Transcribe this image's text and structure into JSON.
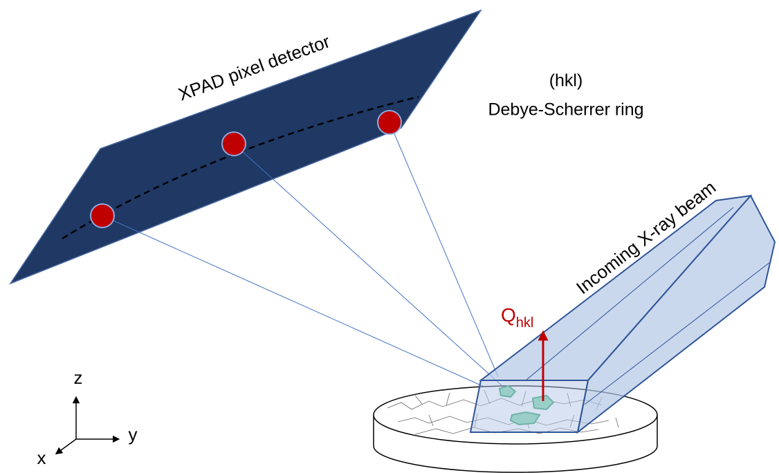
{
  "labels": {
    "detector": "XPAD pixel detector",
    "ring_hkl": "(hkl)",
    "ring_name": "Debye-Scherrer ring",
    "beam": "Incoming X-ray beam",
    "q_symbol": "Q",
    "q_subscript": "hkl"
  },
  "axes": {
    "z": "z",
    "y": "y",
    "x": "x"
  }
}
